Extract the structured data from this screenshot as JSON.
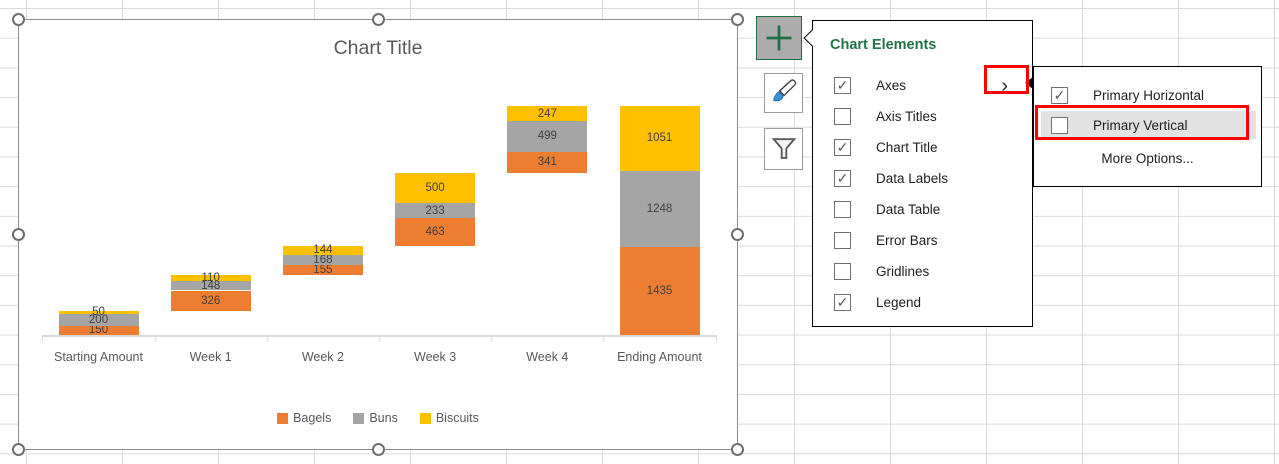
{
  "chart_data": {
    "type": "bar",
    "subtype": "stacked-column-waterfall",
    "title": "Chart Title",
    "categories": [
      "Starting Amount",
      "Week 1",
      "Week 2",
      "Week 3",
      "Week 4",
      "Ending Amount"
    ],
    "series": [
      {
        "name": "Bagels",
        "color": "#ED7D31",
        "values": [
          150,
          326,
          155,
          463,
          341,
          1435
        ]
      },
      {
        "name": "Buns",
        "color": "#A5A5A5",
        "values": [
          200,
          148,
          168,
          233,
          499,
          1248
        ]
      },
      {
        "name": "Biscuits",
        "color": "#FFC000",
        "values": [
          50,
          110,
          144,
          500,
          247,
          1051
        ]
      }
    ],
    "base_values": [
      0,
      400,
      984,
      1451,
      2647,
      0
    ],
    "value_axis_max": 3734,
    "data_labels": true,
    "legend_position": "bottom",
    "gridlines": false,
    "visible_axes": [
      "primary-horizontal"
    ]
  },
  "side_buttons": [
    {
      "id": "chart-elements",
      "icon": "plus-icon",
      "active": true
    },
    {
      "id": "chart-styles",
      "icon": "brush-icon",
      "active": false
    },
    {
      "id": "chart-filters",
      "icon": "funnel-icon",
      "active": false
    }
  ],
  "elements_menu": {
    "title": "Chart Elements",
    "items": [
      {
        "label": "Axes",
        "checked": true,
        "has_submenu": true
      },
      {
        "label": "Axis Titles",
        "checked": false
      },
      {
        "label": "Chart Title",
        "checked": true
      },
      {
        "label": "Data Labels",
        "checked": true
      },
      {
        "label": "Data Table",
        "checked": false
      },
      {
        "label": "Error Bars",
        "checked": false
      },
      {
        "label": "Gridlines",
        "checked": false
      },
      {
        "label": "Legend",
        "checked": true
      }
    ]
  },
  "axes_submenu": {
    "items": [
      {
        "label": "Primary Horizontal",
        "checked": true,
        "highlighted": false
      },
      {
        "label": "Primary Vertical",
        "checked": false,
        "highlighted": true,
        "red_outline": true
      }
    ],
    "footer": "More Options..."
  },
  "icons": {
    "checkmark": "✓",
    "submenu_arrow": "›"
  },
  "colors": {
    "menu_title_green": "#217346",
    "annotation_red": "#FF0000",
    "axis_line": "#D9D9D9",
    "chart_text_gray": "#595959",
    "submenu_highlight_gray": "#E2E2E2",
    "plus_button_active_bg": "#ACACAC"
  }
}
